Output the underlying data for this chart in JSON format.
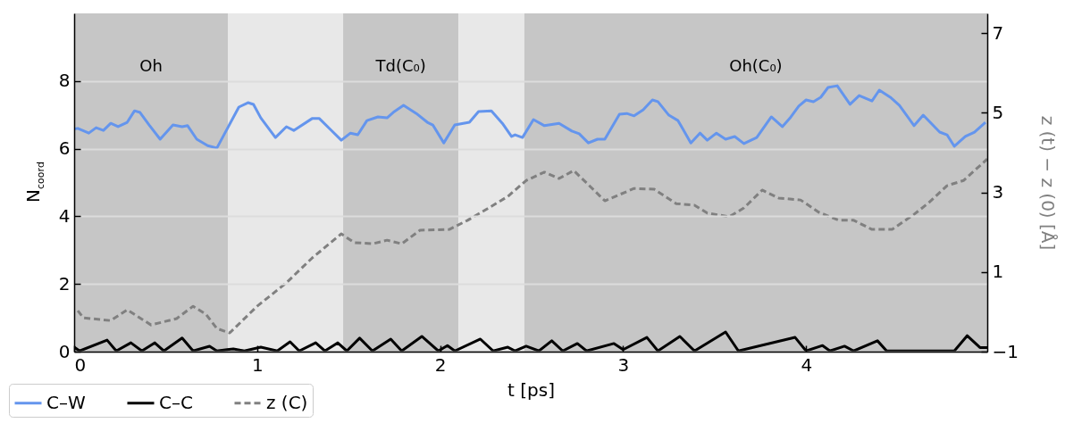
{
  "chart_data": {
    "type": "line",
    "xlabel": "t [ps]",
    "ylabel": "N$_{coord}$",
    "y2label": "z (t) − z (0) [Å]",
    "xlim": [
      0,
      4.99
    ],
    "xticks": [
      0,
      1,
      2,
      3,
      4
    ],
    "ylim": [
      0,
      10
    ],
    "yticks": [
      0,
      2,
      4,
      6,
      8
    ],
    "y2lim": [
      -1,
      7.5
    ],
    "y2ticks": [
      -1,
      1,
      3,
      5,
      7
    ],
    "grid": "y",
    "legend": "bottom left",
    "bands": [
      {
        "axis": "x",
        "from": 0,
        "to": 0.84,
        "label": "Oh",
        "color": "#c6c6c6"
      },
      {
        "axis": "x",
        "from": 0.84,
        "to": 1.47,
        "color": "#e8e8e8"
      },
      {
        "axis": "x",
        "from": 1.47,
        "to": 2.1,
        "label": "Td(C₀)",
        "color": "#c6c6c6"
      },
      {
        "axis": "x",
        "from": 2.1,
        "to": 2.46,
        "color": "#e8e8e8"
      },
      {
        "axis": "x",
        "from": 2.46,
        "to": 4.99,
        "label": "Oh(C₀)",
        "color": "#c6c6c6"
      }
    ],
    "series": [
      {
        "name": "C–W",
        "color": "#6495ed",
        "line_style": "solid",
        "x": [
          0,
          0.02,
          0.08,
          0.12,
          0.16,
          0.2,
          0.24,
          0.29,
          0.33,
          0.36,
          0.41,
          0.47,
          0.54,
          0.59,
          0.62,
          0.67,
          0.73,
          0.78,
          0.9,
          0.95,
          0.98,
          1.02,
          1.1,
          1.16,
          1.2,
          1.3,
          1.34,
          1.4,
          1.46,
          1.51,
          1.55,
          1.6,
          1.66,
          1.71,
          1.75,
          1.8,
          1.87,
          1.93,
          1.96,
          2.02,
          2.08,
          2.16,
          2.21,
          2.28,
          2.34,
          2.39,
          2.41,
          2.45,
          2.51,
          2.57,
          2.65,
          2.72,
          2.76,
          2.81,
          2.86,
          2.9,
          2.98,
          3.02,
          3.06,
          3.11,
          3.16,
          3.19,
          3.25,
          3.3,
          3.37,
          3.42,
          3.46,
          3.51,
          3.56,
          3.61,
          3.66,
          3.73,
          3.81,
          3.87,
          3.91,
          3.96,
          4.0,
          4.04,
          4.08,
          4.12,
          4.17,
          4.24,
          4.29,
          4.36,
          4.4,
          4.46,
          4.51,
          4.59,
          4.64,
          4.73,
          4.77,
          4.81,
          4.87,
          4.92,
          4.98
        ],
        "values": [
          6.58,
          6.6,
          6.46,
          6.62,
          6.54,
          6.75,
          6.65,
          6.78,
          7.12,
          7.07,
          6.7,
          6.28,
          6.7,
          6.65,
          6.68,
          6.28,
          6.09,
          6.02,
          7.23,
          7.36,
          7.31,
          6.91,
          6.33,
          6.65,
          6.54,
          6.89,
          6.89,
          6.57,
          6.25,
          6.46,
          6.41,
          6.83,
          6.94,
          6.91,
          7.1,
          7.28,
          7.04,
          6.78,
          6.7,
          6.17,
          6.7,
          6.78,
          7.1,
          7.12,
          6.75,
          6.36,
          6.41,
          6.33,
          6.86,
          6.68,
          6.75,
          6.52,
          6.44,
          6.17,
          6.28,
          6.28,
          7.02,
          7.04,
          6.97,
          7.15,
          7.44,
          7.39,
          6.99,
          6.83,
          6.17,
          6.46,
          6.25,
          6.46,
          6.28,
          6.36,
          6.15,
          6.33,
          6.94,
          6.65,
          6.89,
          7.26,
          7.44,
          7.39,
          7.52,
          7.81,
          7.86,
          7.31,
          7.57,
          7.41,
          7.73,
          7.52,
          7.28,
          6.68,
          6.99,
          6.49,
          6.41,
          6.07,
          6.36,
          6.49,
          6.78
        ]
      },
      {
        "name": "C–C",
        "color": "#000000",
        "line_style": "solid",
        "x": [
          0,
          0.03,
          0.18,
          0.23,
          0.31,
          0.37,
          0.44,
          0.49,
          0.59,
          0.65,
          0.74,
          0.78,
          0.87,
          0.93,
          1.02,
          1.11,
          1.18,
          1.23,
          1.32,
          1.37,
          1.44,
          1.49,
          1.56,
          1.63,
          1.73,
          1.79,
          1.9,
          1.99,
          2.04,
          2.08,
          2.22,
          2.29,
          2.37,
          2.41,
          2.47,
          2.54,
          2.61,
          2.67,
          2.75,
          2.8,
          2.95,
          3.0,
          3.13,
          3.19,
          3.31,
          3.39,
          3.56,
          3.63,
          3.94,
          4.0,
          4.09,
          4.13,
          4.21,
          4.26,
          4.39,
          4.44,
          4.81,
          4.88,
          4.95,
          4.99
        ],
        "values": [
          0.13,
          0.02,
          0.34,
          0.02,
          0.26,
          0.02,
          0.26,
          0.02,
          0.4,
          0.02,
          0.16,
          0.02,
          0.08,
          0.02,
          0.13,
          0.02,
          0.29,
          0.02,
          0.26,
          0.02,
          0.26,
          0.02,
          0.4,
          0.02,
          0.37,
          0.02,
          0.45,
          0.02,
          0.18,
          0.02,
          0.37,
          0.02,
          0.13,
          0.02,
          0.16,
          0.02,
          0.32,
          0.02,
          0.24,
          0.02,
          0.24,
          0.06,
          0.42,
          0.02,
          0.45,
          0.02,
          0.58,
          0.02,
          0.42,
          0.02,
          0.18,
          0.02,
          0.16,
          0.02,
          0.32,
          0.02,
          0.02,
          0.47,
          0.12,
          0.12
        ]
      },
      {
        "name": "z (C)",
        "color": "#808080",
        "line_style": "dashed",
        "axis": "y2",
        "x": [
          0.02,
          0.05,
          0.2,
          0.29,
          0.42,
          0.56,
          0.65,
          0.72,
          0.78,
          0.85,
          1.0,
          1.16,
          1.3,
          1.46,
          1.53,
          1.63,
          1.71,
          1.79,
          1.89,
          2.05,
          2.15,
          2.28,
          2.37,
          2.47,
          2.57,
          2.65,
          2.73,
          2.8,
          2.9,
          3.06,
          3.17,
          3.29,
          3.39,
          3.46,
          3.58,
          3.66,
          3.76,
          3.85,
          3.97,
          4.07,
          4.18,
          4.26,
          4.36,
          4.47,
          4.59,
          4.67,
          4.77,
          4.86,
          4.99
        ],
        "values": [
          0.03,
          -0.15,
          -0.22,
          0.05,
          -0.33,
          -0.17,
          0.14,
          -0.06,
          -0.42,
          -0.53,
          0.14,
          0.73,
          1.35,
          1.96,
          1.74,
          1.71,
          1.8,
          1.71,
          2.05,
          2.07,
          2.3,
          2.65,
          2.9,
          3.3,
          3.51,
          3.35,
          3.55,
          3.24,
          2.79,
          3.1,
          3.08,
          2.72,
          2.68,
          2.48,
          2.39,
          2.61,
          3.06,
          2.86,
          2.81,
          2.5,
          2.3,
          2.3,
          2.07,
          2.07,
          2.45,
          2.74,
          3.17,
          3.3,
          3.84
        ]
      }
    ]
  }
}
